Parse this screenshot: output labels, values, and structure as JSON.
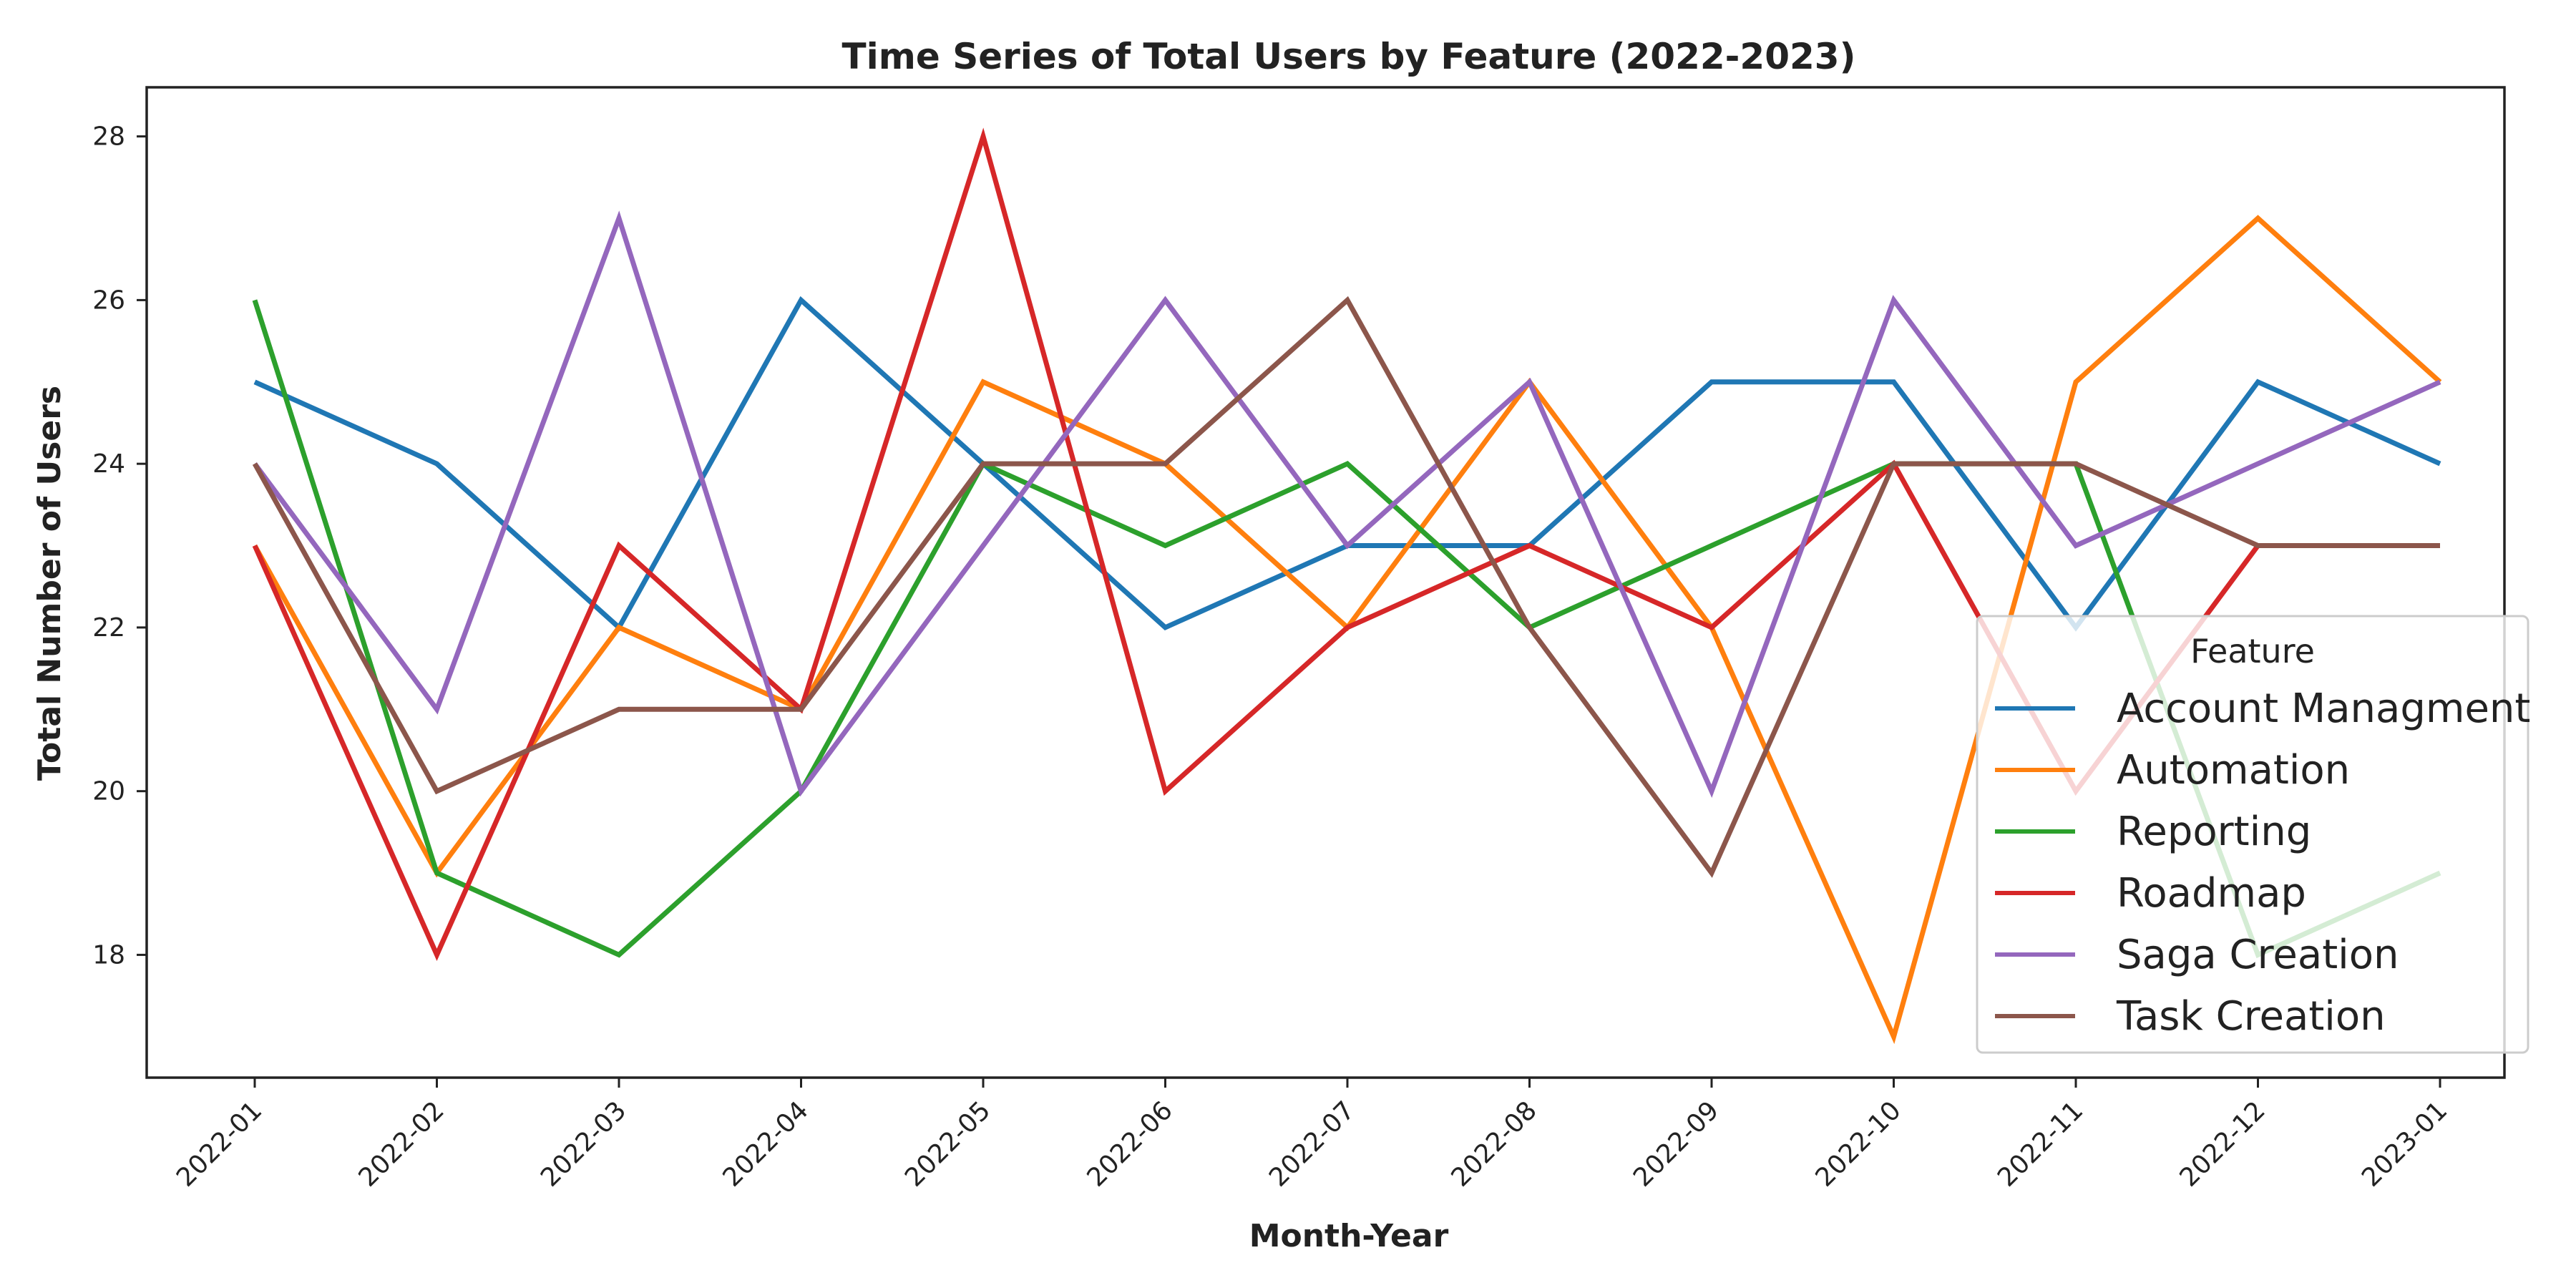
{
  "chart_data": {
    "type": "line",
    "title": "Time Series of Total Users by Feature (2022-2023)",
    "xlabel": "Month-Year",
    "ylabel": "Total Number of Users",
    "x": [
      "2022-01",
      "2022-02",
      "2022-03",
      "2022-04",
      "2022-05",
      "2022-06",
      "2022-07",
      "2022-08",
      "2022-09",
      "2022-10",
      "2022-11",
      "2022-12",
      "2023-01"
    ],
    "y_ticks": [
      18,
      20,
      22,
      24,
      26,
      28
    ],
    "ylim": [
      16.5,
      28.6
    ],
    "grid": false,
    "legend": {
      "title": "Feature",
      "placement": "lower-right"
    },
    "series": [
      {
        "name": "Account Managment",
        "color": "#1f77b4",
        "values": [
          25,
          24,
          22,
          26,
          24,
          22,
          23,
          23,
          25,
          25,
          22,
          25,
          24
        ]
      },
      {
        "name": "Automation",
        "color": "#ff7f0e",
        "values": [
          23,
          19,
          22,
          21,
          25,
          24,
          22,
          25,
          22,
          17,
          25,
          27,
          25
        ]
      },
      {
        "name": "Reporting",
        "color": "#2ca02c",
        "values": [
          26,
          19,
          18,
          20,
          24,
          23,
          24,
          22,
          23,
          24,
          24,
          18,
          19
        ]
      },
      {
        "name": "Roadmap",
        "color": "#d62728",
        "values": [
          23,
          18,
          23,
          21,
          28,
          20,
          22,
          23,
          22,
          24,
          20,
          23,
          23
        ]
      },
      {
        "name": "Saga Creation",
        "color": "#9467bd",
        "values": [
          24,
          21,
          27,
          20,
          23,
          26,
          23,
          25,
          20,
          26,
          23,
          24,
          25
        ]
      },
      {
        "name": "Task Creation",
        "color": "#8c564b",
        "values": [
          24,
          20,
          21,
          21,
          24,
          24,
          26,
          22,
          19,
          24,
          24,
          23,
          23
        ]
      }
    ]
  }
}
